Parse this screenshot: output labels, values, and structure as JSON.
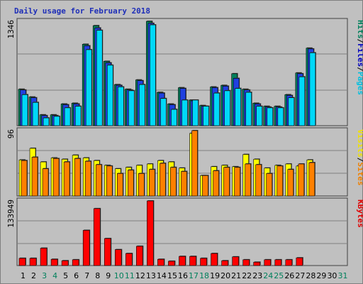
{
  "chart_data": [
    {
      "type": "bar",
      "panel": "pages-files-hits",
      "title": "Daily usage for February 2018",
      "ymax_label": "1346",
      "ylim": [
        0,
        1346
      ],
      "right_labels": [
        {
          "text": "Hits",
          "color": "#00805c"
        },
        {
          "text": "/",
          "color": "#000000"
        },
        {
          "text": "Files",
          "color": "#0000c0"
        },
        {
          "text": "/",
          "color": "#000000"
        },
        {
          "text": "Pages",
          "color": "#00c0e0"
        }
      ],
      "categories": [
        "1",
        "2",
        "3",
        "4",
        "5",
        "6",
        "7",
        "8",
        "9",
        "10",
        "11",
        "12",
        "13",
        "14",
        "15",
        "16",
        "17",
        "18",
        "19",
        "20",
        "21",
        "22",
        "23",
        "24",
        "25",
        "26",
        "27",
        "28",
        "29",
        "30",
        "31"
      ],
      "series": [
        {
          "name": "Hits",
          "color": "#00805c",
          "values": [
            470,
            370,
            140,
            140,
            280,
            290,
            1050,
            1290,
            830,
            530,
            470,
            590,
            1346,
            430,
            280,
            490,
            330,
            260,
            500,
            520,
            670,
            470,
            290,
            250,
            250,
            400,
            680,
            1000,
            0,
            0,
            0
          ]
        },
        {
          "name": "Files",
          "color": "#2040e0",
          "values": [
            460,
            360,
            130,
            130,
            270,
            280,
            1030,
            1260,
            810,
            520,
            460,
            580,
            1320,
            420,
            270,
            480,
            320,
            250,
            490,
            510,
            610,
            460,
            280,
            240,
            240,
            390,
            670,
            990,
            0,
            0,
            0
          ]
        },
        {
          "name": "Pages",
          "color": "#00d8f8",
          "values": [
            400,
            300,
            100,
            120,
            230,
            250,
            980,
            1230,
            780,
            500,
            450,
            530,
            1300,
            350,
            210,
            330,
            330,
            250,
            420,
            450,
            480,
            430,
            250,
            230,
            230,
            360,
            630,
            940,
            0,
            0,
            0
          ]
        }
      ]
    },
    {
      "type": "bar",
      "panel": "visits-sites",
      "ymax_label": "96",
      "ylim": [
        0,
        96
      ],
      "right_labels": [
        {
          "text": "Visits",
          "color": "#f0e000"
        },
        {
          "text": "/",
          "color": "#000000"
        },
        {
          "text": "Sites",
          "color": "#f08000"
        }
      ],
      "series": [
        {
          "name": "Visits",
          "color": "#ffff00",
          "values": [
            53,
            70,
            50,
            56,
            54,
            60,
            56,
            52,
            45,
            40,
            42,
            45,
            47,
            52,
            50,
            41,
            92,
            30,
            43,
            45,
            43,
            61,
            54,
            41,
            45,
            47,
            44,
            53,
            0,
            0,
            0
          ]
        },
        {
          "name": "Sites",
          "color": "#ff8000",
          "values": [
            52,
            57,
            40,
            55,
            50,
            55,
            51,
            46,
            44,
            33,
            38,
            33,
            39,
            48,
            42,
            36,
            96,
            30,
            37,
            42,
            42,
            47,
            46,
            33,
            44,
            39,
            47,
            49,
            0,
            0,
            0
          ]
        }
      ]
    },
    {
      "type": "bar",
      "panel": "kbytes",
      "ymax_label": "133949",
      "ylim": [
        0,
        133949
      ],
      "right_labels": [
        {
          "text": "KBytes",
          "color": "#e00000"
        }
      ],
      "series": [
        {
          "name": "KBytes",
          "color": "#ff0000",
          "values": [
            15000,
            15000,
            36000,
            13000,
            10000,
            12000,
            73000,
            118000,
            56000,
            33000,
            25000,
            40000,
            133949,
            13000,
            9000,
            19000,
            19000,
            15000,
            25000,
            10000,
            18000,
            12000,
            7000,
            12000,
            12000,
            12000,
            16000,
            0,
            0,
            0,
            0
          ]
        }
      ]
    }
  ],
  "xaxis": {
    "labels": [
      "1",
      "2",
      "3",
      "4",
      "5",
      "6",
      "7",
      "8",
      "9",
      "10",
      "11",
      "12",
      "13",
      "14",
      "15",
      "16",
      "17",
      "18",
      "19",
      "20",
      "21",
      "22",
      "23",
      "24",
      "25",
      "26",
      "27",
      "28",
      "29",
      "30",
      "31"
    ],
    "weekend_days": [
      3,
      4,
      10,
      11,
      17,
      18,
      24,
      25,
      31
    ],
    "weekday_color": "#000000",
    "weekend_color": "#00805c"
  },
  "colors": {
    "panel_bg": "#c0c0c0",
    "gridline": "#808080",
    "frame": "#7f7f7f",
    "shadow": "#404040",
    "title": "#1f2fb8"
  }
}
